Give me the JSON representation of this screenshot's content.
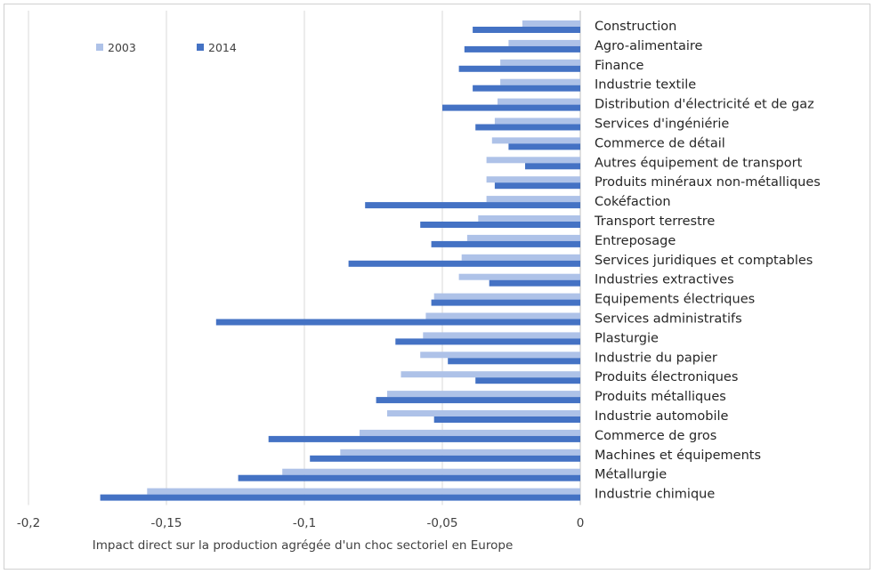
{
  "chart_data": {
    "type": "bar",
    "orientation": "horizontal",
    "xlabel": "Impact direct sur la production agrégée d'un choc sectoriel en Europe",
    "ylabel": "",
    "xlim": [
      -0.2,
      0
    ],
    "xticks": [
      -0.2,
      -0.15,
      -0.1,
      -0.05,
      0
    ],
    "xtick_labels": [
      "-0,2",
      "-0,15",
      "-0,1",
      "-0,05",
      "0"
    ],
    "grid": "vertical",
    "legend_position": "top-left",
    "categories": [
      "Construction",
      "Agro-alimentaire",
      "Finance",
      "Industrie textile",
      "Distribution d'électricité et de gaz",
      "Services d'ingéniérie",
      "Commerce de détail",
      "Autres équipement de transport",
      "Produits minéraux non-métalliques",
      "Cokéfaction",
      "Transport terrestre",
      "Entreposage",
      "Services juridiques et comptables",
      "Industries extractives",
      "Equipements électriques",
      "Services administratifs",
      "Plasturgie",
      "Industrie du papier",
      "Produits électroniques",
      "Produits métalliques",
      "Industrie automobile",
      "Commerce de gros",
      "Machines et équipements",
      "Métallurgie",
      "Industrie chimique"
    ],
    "series": [
      {
        "name": "2003",
        "color": "#aec2e8",
        "values": [
          -0.021,
          -0.026,
          -0.029,
          -0.029,
          -0.03,
          -0.031,
          -0.032,
          -0.034,
          -0.034,
          -0.034,
          -0.037,
          -0.041,
          -0.043,
          -0.044,
          -0.053,
          -0.056,
          -0.057,
          -0.058,
          -0.065,
          -0.07,
          -0.07,
          -0.08,
          -0.087,
          -0.108,
          -0.157
        ]
      },
      {
        "name": "2014",
        "color": "#4472c4",
        "values": [
          -0.039,
          -0.042,
          -0.044,
          -0.039,
          -0.05,
          -0.038,
          -0.026,
          -0.02,
          -0.031,
          -0.078,
          -0.058,
          -0.054,
          -0.084,
          -0.033,
          -0.054,
          -0.132,
          -0.067,
          -0.048,
          -0.038,
          -0.074,
          -0.053,
          -0.113,
          -0.098,
          -0.124,
          -0.174
        ]
      }
    ]
  }
}
